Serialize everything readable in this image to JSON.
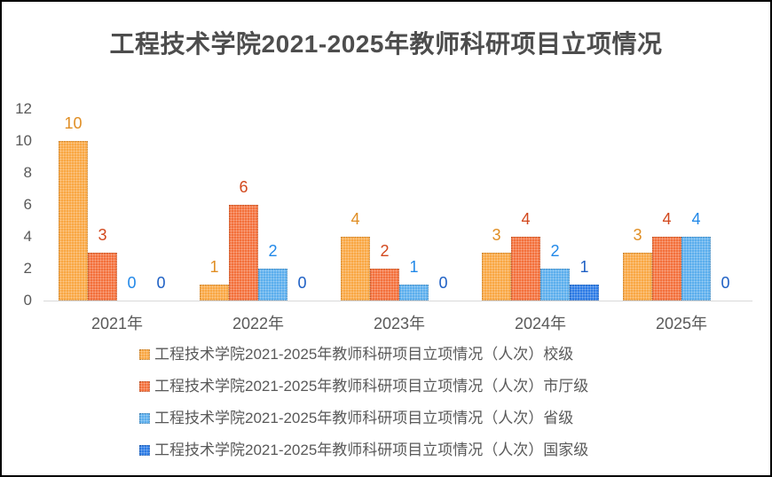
{
  "chart_data": {
    "type": "bar",
    "title": "工程技术学院2021-2025年教师科研项目立项情况",
    "categories": [
      "2021年",
      "2022年",
      "2023年",
      "2024年",
      "2025年"
    ],
    "series": [
      {
        "name": "工程技术学院2021-2025年教师科研项目立项情况（人次）校级",
        "values": [
          10,
          1,
          4,
          3,
          3
        ],
        "color": "#F9A743",
        "label_color": "#E08E24"
      },
      {
        "name": "工程技术学院2021-2025年教师科研项目立项情况（人次）市厅级",
        "values": [
          3,
          6,
          2,
          4,
          4
        ],
        "color": "#F3703B",
        "label_color": "#D2481D"
      },
      {
        "name": "工程技术学院2021-2025年教师科研项目立项情况（人次）省级",
        "values": [
          0,
          2,
          1,
          2,
          4
        ],
        "color": "#5BAEED",
        "label_color": "#2188E8"
      },
      {
        "name": "工程技术学院2021-2025年教师科研项目立项情况（人次）国家级",
        "values": [
          0,
          0,
          0,
          1,
          0
        ],
        "color": "#2D7BE5",
        "label_color": "#1D5FC4"
      }
    ],
    "xlabel": "",
    "ylabel": "",
    "ylim": [
      0,
      12
    ],
    "ytick_step": 2,
    "grid": false,
    "show_data_labels": true,
    "legend_position": "bottom-left",
    "colors": {
      "title_text": "#4D4D4D",
      "axis_text": "#595959",
      "legend_text": "#595959",
      "axis_line": "#D9D9D9"
    }
  }
}
